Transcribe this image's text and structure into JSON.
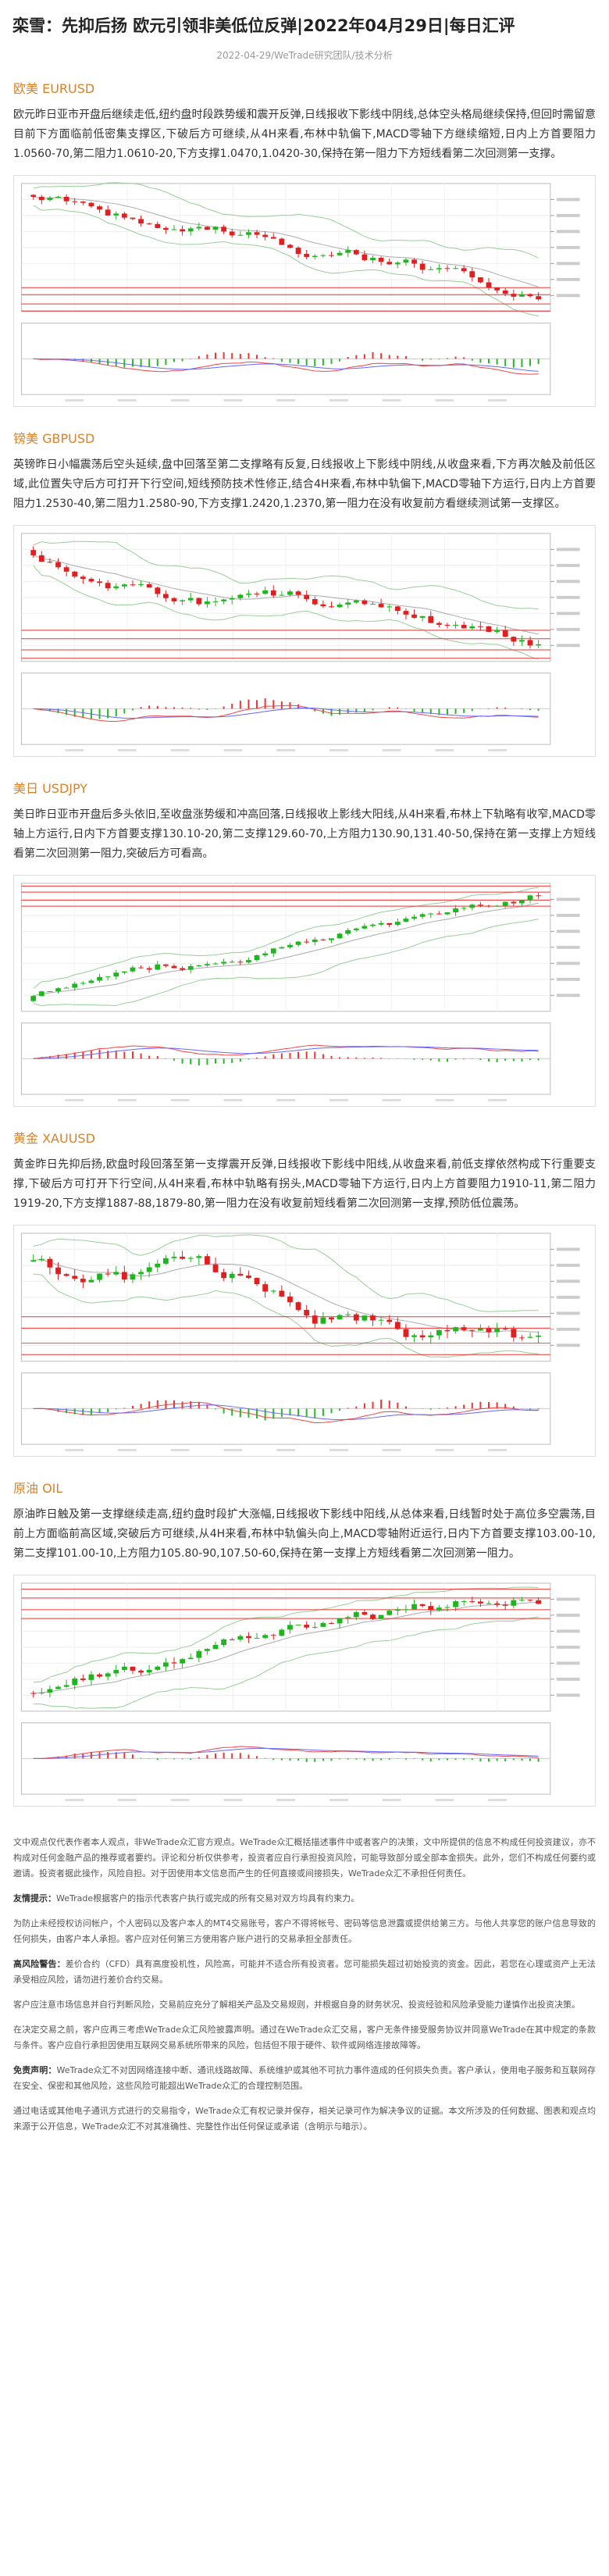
{
  "header": {
    "title": "栾雪：先抑后扬 欧元引领非美低位反弹|2022年04月29日|每日汇评",
    "meta": "2022-04-29/WeTrade研究团队/技术分析"
  },
  "sections": [
    {
      "heading": "欧美 EURUSD",
      "text": "欧元昨日亚市开盘后继续走低,纽约盘时段跌势缓和震开反弹,日线报收下影线中阴线,总体空头格局继续保持,但回时需留意目前下方面临前低密集支撑区,下破后方可继续,从4H来看,布林中轨偏下,MACD零轴下方继续缩短,日内上方首要阻力1.0560-70,第二阻力1.0610-20,下方支撑1.0470,1.0420-30,保持在第一阻力下方短线看第二次回测第一支撑。"
    },
    {
      "heading": "镑美 GBPUSD",
      "text": "英镑昨日小幅震荡后空头延续,盘中回落至第二支撑略有反复,日线报收上下影线中阴线,从收盘来看,下方再次触及前低区域,此位置失守后方可打开下行空间,短线预防技术性修正,结合4H来看,布林中轨偏下,MACD零轴下方运行,日内上方首要阻力1.2530-40,第二阻力1.2580-90,下方支撑1.2420,1.2370,第一阻力在没有收复前方看继续测试第一支撑区。"
    },
    {
      "heading": "美日 USDJPY",
      "text": "美日昨日亚市开盘后多头依旧,至收盘涨势缓和冲高回落,日线报收上影线大阳线,从4H来看,布林上下轨略有收窄,MACD零轴上方运行,日内下方首要支撑130.10-20,第二支撑129.60-70,上方阻力130.90,131.40-50,保持在第一支撑上方短线看第二次回测第一阻力,突破后方可看高。"
    },
    {
      "heading": "黄金 XAUUSD",
      "text": "黄金昨日先抑后扬,欧盘时段回落至第一支撑震开反弹,日线报收下影线中阳线,从收盘来看,前低支撑依然构成下行重要支撑,下破后方可打开下行空间,从4H来看,布林中轨略有拐头,MACD零轴下方运行,日内上方首要阻力1910-11,第二阻力1919-20,下方支撑1887-88,1879-80,第一阻力在没有收复前短线看第二次回测第一支撑,预防低位震荡。"
    },
    {
      "heading": "原油 OIL",
      "text": "原油昨日触及第一支撑继续走高,纽约盘时段扩大涨幅,日线报收下影线中阳线,从总体来看,日线暂时处于高位多空震荡,目前上方面临前高区域,突破后方可继续,从4H来看,布林中轨偏头向上,MACD零轴附近运行,日内下方首要支撑103.00-10,第二支撑101.00-10,上方阻力105.80-90,107.50-60,保持在第一支撑上方短线看第二次回测第一阻力。"
    }
  ],
  "disclaimer": [
    {
      "text": "文中观点仅代表作者本人观点，非WeTrade众汇官方观点。WeTrade众汇概括描述事件中或者客户的决策，文中所提供的信息不构成任何投资建议，亦不构成对任何金融产品的推荐或者要约。评论和分析仅供参考，投资者应自行承担投资风险，可能导致部分或全部本金损失。此外，您们不构成任何要约或邀请。投资者据此操作，风险自担。对于因使用本文信息而产生的任何直接或间接损失，WeTrade众汇不承担任何责任。"
    },
    {
      "lead": "友情提示：",
      "text": "WeTrade根据客户的指示代表客户执行或完成的所有交易对双方均具有约束力。"
    },
    {
      "text": "为防止未经授权访问帐户，个人密码以及客户本人的MT4交易账号，客户不得将帐号、密码等信息泄露或提供给第三方。与他人共享您的账户信息导致的任何损失，由客户本人承担。客户应对任何第三方使用客户账户进行的交易承担全部责任。"
    },
    {
      "lead": "高风险警告：",
      "text": "差价合约（CFD）具有高度投机性，风险高，可能并不适合所有投资者。您可能损失超过初始投资的资金。因此，若您在心理或资产上无法承受相应风险，请勿进行差价合约交易。"
    },
    {
      "text": "客户应注意市场信息并自行判断风险，交易前应充分了解相关产品及交易规则，并根据自身的财务状况、投资经验和风险承受能力谨慎作出投资决策。"
    },
    {
      "text": "在决定交易之前，客户应再三考虑WeTrade众汇风险披露声明。通过在WeTrade众汇交易，客户无条件接受服务协议并同意WeTrade在其中规定的条款与条件。客户应自行承担因使用互联网交易系统所带来的风险，包括但不限于硬件、软件或网络连接故障等。"
    },
    {
      "lead": "免责声明：",
      "text": "WeTrade众汇不对因网络连接中断、通讯线路故障、系统维护或其他不可抗力事件造成的任何损失负责。客户承认，使用电子服务和互联网存在安全、保密和其他风险，这些风险可能超出WeTrade众汇的合理控制范围。"
    },
    {
      "text": "通过电话或其他电子通讯方式进行的交易指令，WeTrade众汇有权记录并保存，相关记录可作为解决争议的证据。本文所涉及的任何数据、图表和观点均来源于公开信息，WeTrade众汇不对其准确性、完整性作出任何保证或承诺（含明示与暗示）。"
    }
  ]
}
